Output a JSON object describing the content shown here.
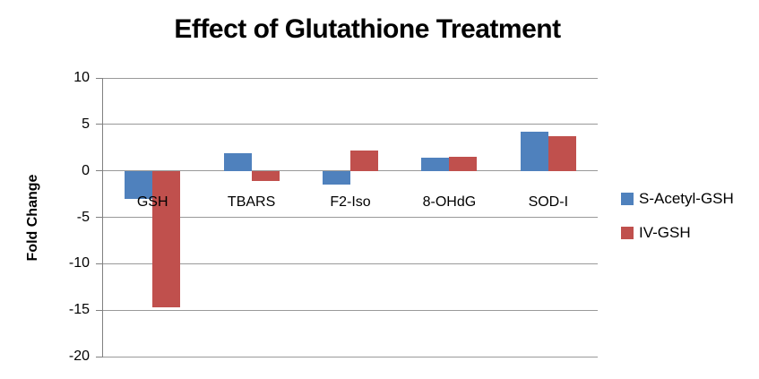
{
  "chart_data": {
    "type": "bar",
    "title": "Effect of Glutathione Treatment",
    "xlabel": "",
    "ylabel": "Fold Change",
    "categories": [
      "GSH",
      "TBARS",
      "F2-Iso",
      "8-OHdG",
      "SOD-I"
    ],
    "series": [
      {
        "name": "S-Acetyl-GSH",
        "color": "#4F81BD",
        "values": [
          -3.0,
          1.9,
          -1.5,
          1.4,
          4.2
        ]
      },
      {
        "name": "IV-GSH",
        "color": "#C0504D",
        "values": [
          -14.7,
          -1.1,
          2.2,
          1.5,
          3.7
        ]
      }
    ],
    "ylim": [
      -20,
      10
    ],
    "yticks": [
      10,
      5,
      0,
      -5,
      -10,
      -15,
      -20
    ],
    "grid": "horizontal",
    "legend_position": "right",
    "grid_color": "#999999",
    "axis_color": "#808080",
    "background_color": "#ffffff",
    "text_color": "#000000"
  }
}
